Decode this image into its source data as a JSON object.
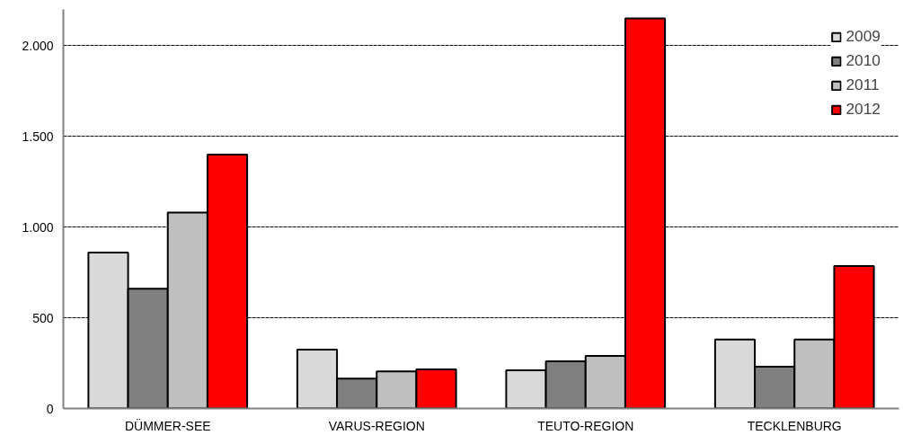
{
  "chart_data": {
    "type": "bar",
    "categories": [
      "DÜMMER-SEE",
      "VARUS-REGION",
      "TEUTO-REGION",
      "TECKLENBURG"
    ],
    "series": [
      {
        "name": "2009",
        "color": "#d9d9d9",
        "values": [
          860,
          325,
          210,
          380
        ]
      },
      {
        "name": "2010",
        "color": "#808080",
        "values": [
          660,
          165,
          260,
          230
        ]
      },
      {
        "name": "2011",
        "color": "#c0c0c0",
        "values": [
          1080,
          205,
          290,
          380
        ]
      },
      {
        "name": "2012",
        "color": "#ff0000",
        "values": [
          1400,
          215,
          2150,
          785
        ]
      }
    ],
    "ylim": [
      0,
      2200
    ],
    "yticks": [
      0,
      {
        "value": 500,
        "label": "500"
      },
      {
        "value": 1000,
        "label": "1.000"
      },
      {
        "value": 1500,
        "label": "1.500"
      },
      {
        "value": 2000,
        "label": "2.000"
      }
    ],
    "grid": "y",
    "legend": "top right"
  }
}
